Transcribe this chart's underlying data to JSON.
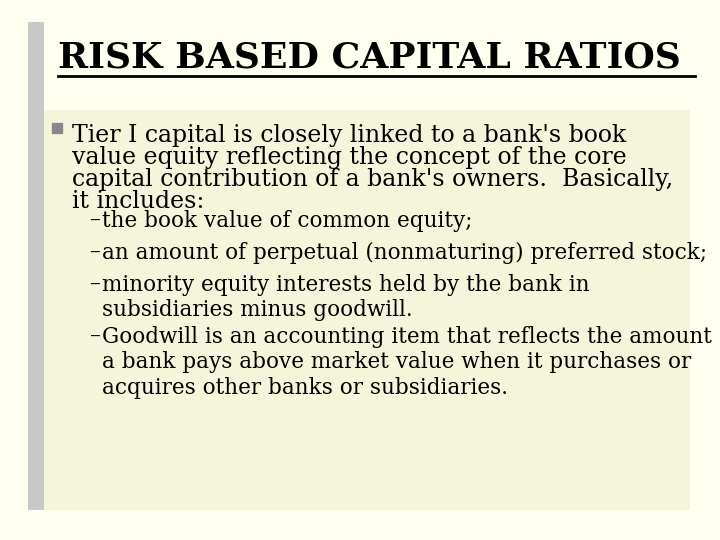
{
  "bg_color": "#fffff0",
  "title": "RISK BASED CAPITAL RATIOS",
  "title_fontsize": 26,
  "content_bg": "#f5f5dc",
  "left_bar_color": "#c8c8c8",
  "bullet_marker_color": "#888888",
  "bullet_text_line1": "Tier I capital is closely linked to a bank's book",
  "bullet_text_line2": "value equity reflecting the concept of the core",
  "bullet_text_line3": "capital contribution of a bank's owners.  Basically,",
  "bullet_text_line4": "it includes:",
  "sub_bullets": [
    "the book value of common equity;",
    "an amount of perpetual (nonmaturing) preferred stock;",
    "minority equity interests held by the bank in\nsubsidiaries minus goodwill.",
    "Goodwill is an accounting item that reflects the amount\na bank pays above market value when it purchases or\nacquires other banks or subsidiaries."
  ],
  "main_bullet_fontsize": 17,
  "sub_bullet_fontsize": 15.5,
  "font_family": "DejaVu Serif",
  "text_color": "#000000"
}
